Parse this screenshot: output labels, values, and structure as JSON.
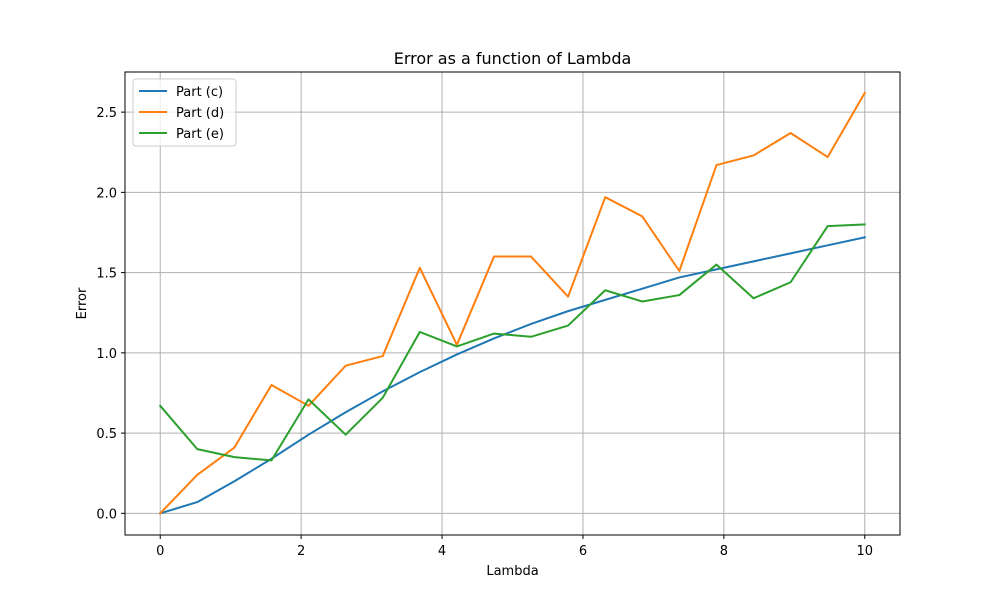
{
  "chart_data": {
    "type": "line",
    "title": "Error as a function of Lambda",
    "xlabel": "Lambda",
    "ylabel": "Error",
    "xlim": [
      -0.5,
      10.5
    ],
    "ylim": [
      -0.135,
      2.75
    ],
    "xticks": [
      0,
      2,
      4,
      6,
      8,
      10
    ],
    "xtick_labels": [
      "0",
      "2",
      "4",
      "6",
      "8",
      "10"
    ],
    "yticks": [
      0.0,
      0.5,
      1.0,
      1.5,
      2.0,
      2.5
    ],
    "ytick_labels": [
      "0.0",
      "0.5",
      "1.0",
      "1.5",
      "2.0",
      "2.5"
    ],
    "grid": true,
    "legend_position": "top-left",
    "x": [
      0,
      0.526,
      1.053,
      1.579,
      2.105,
      2.632,
      3.158,
      3.684,
      4.211,
      4.737,
      5.263,
      5.789,
      6.316,
      6.842,
      7.368,
      7.895,
      8.421,
      8.947,
      9.474,
      10
    ],
    "series": [
      {
        "name": "Part (c)",
        "color": "#1f77b4",
        "values": [
          0.0,
          0.07,
          0.2,
          0.34,
          0.49,
          0.63,
          0.76,
          0.88,
          0.99,
          1.09,
          1.18,
          1.26,
          1.33,
          1.4,
          1.47,
          1.52,
          1.57,
          1.62,
          1.67,
          1.72
        ]
      },
      {
        "name": "Part (d)",
        "color": "#ff7f0e",
        "values": [
          0.0,
          0.24,
          0.41,
          0.8,
          0.67,
          0.92,
          0.98,
          1.53,
          1.05,
          1.6,
          1.6,
          1.35,
          1.97,
          1.85,
          1.51,
          2.17,
          2.23,
          2.37,
          2.22,
          2.62
        ]
      },
      {
        "name": "Part (e)",
        "color": "#2ca02c",
        "values": [
          0.67,
          0.4,
          0.35,
          0.33,
          0.71,
          0.49,
          0.72,
          1.13,
          1.04,
          1.12,
          1.1,
          1.17,
          1.39,
          1.32,
          1.36,
          1.55,
          1.34,
          1.44,
          1.79,
          1.8
        ]
      }
    ]
  }
}
